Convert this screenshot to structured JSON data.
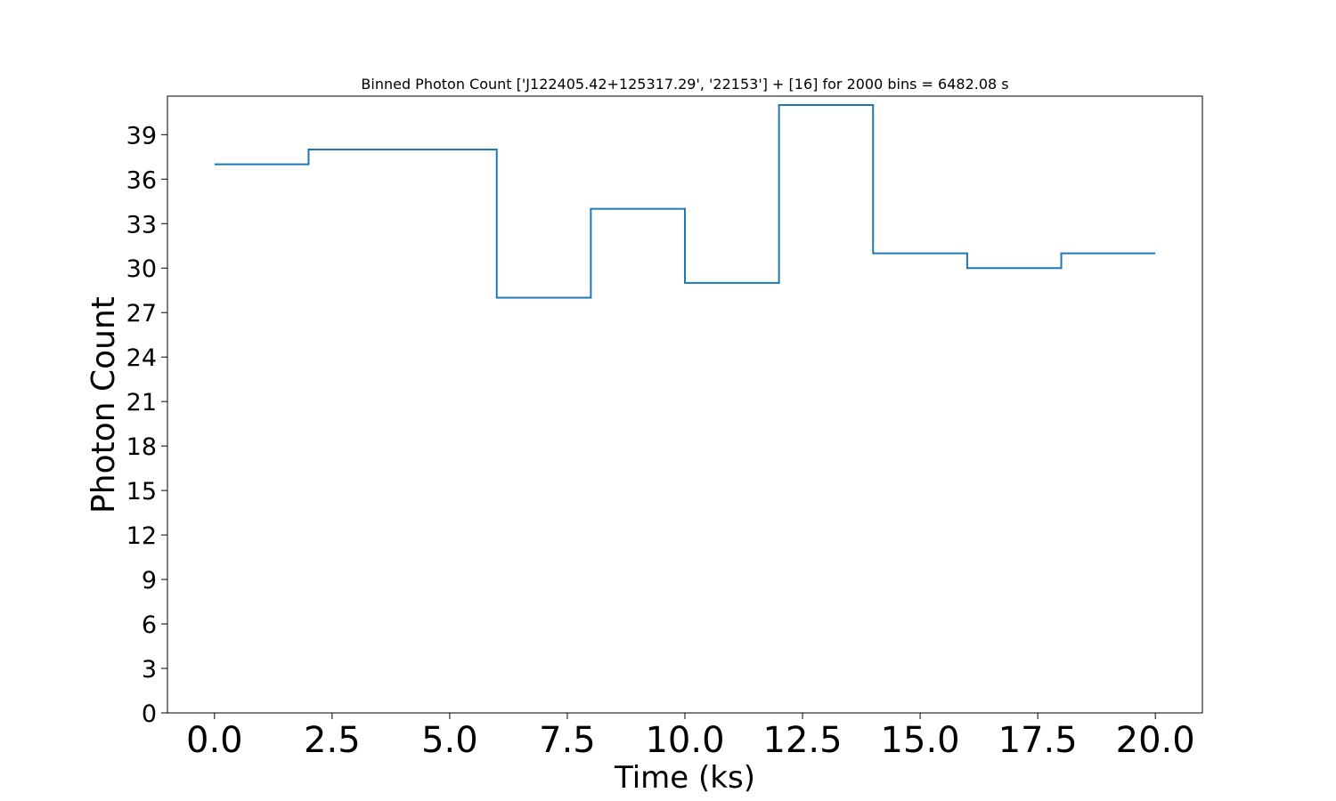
{
  "chart_data": {
    "type": "line",
    "drawstyle": "steps-post",
    "title": "Binned Photon Count ['J122405.42+125317.29', '22153'] + [16] for 2000 bins = 6482.08 s",
    "xlabel": "Time (ks)",
    "ylabel": "Photon Count",
    "xlim": [
      -1.0,
      21.0
    ],
    "ylim": [
      0,
      41.6
    ],
    "xticks": [
      0.0,
      2.5,
      5.0,
      7.5,
      10.0,
      12.5,
      15.0,
      17.5,
      20.0
    ],
    "xtick_labels": [
      "0.0",
      "2.5",
      "5.0",
      "7.5",
      "10.0",
      "12.5",
      "15.0",
      "17.5",
      "20.0"
    ],
    "yticks": [
      0,
      3,
      6,
      9,
      12,
      15,
      18,
      21,
      24,
      27,
      30,
      33,
      36,
      39
    ],
    "ytick_labels": [
      "0",
      "3",
      "6",
      "9",
      "12",
      "15",
      "18",
      "21",
      "24",
      "27",
      "30",
      "33",
      "36",
      "39"
    ],
    "grid": false,
    "series": [
      {
        "color": "#1f77b4",
        "x": [
          0,
          2,
          4,
          6,
          8,
          10,
          12,
          14,
          16,
          18,
          20
        ],
        "y": [
          37,
          38,
          38,
          28,
          34,
          29,
          41,
          31,
          30,
          31,
          31
        ]
      }
    ]
  }
}
